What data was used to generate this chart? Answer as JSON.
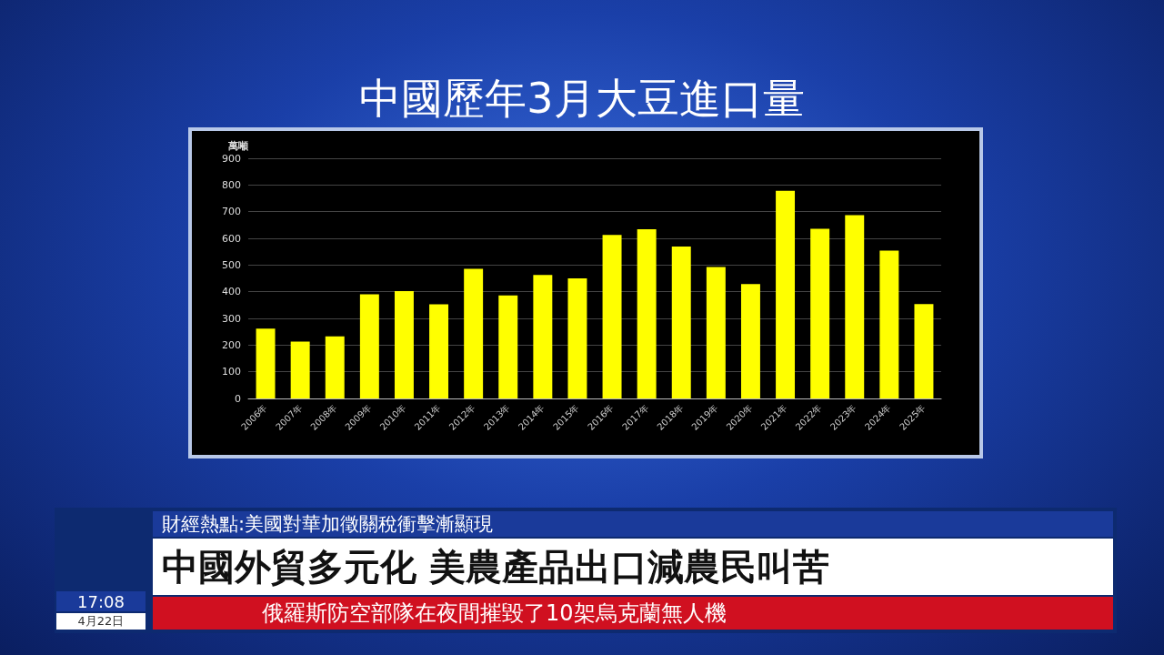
{
  "chart_data": {
    "type": "bar",
    "title": "中國歷年3月大豆進口量",
    "ylabel": "萬噸",
    "categories": [
      "2006年",
      "2007年",
      "2008年",
      "2009年",
      "2010年",
      "2011年",
      "2012年",
      "2013年",
      "2014年",
      "2015年",
      "2016年",
      "2017年",
      "2018年",
      "2019年",
      "2020年",
      "2021年",
      "2022年",
      "2023年",
      "2024年",
      "2025年"
    ],
    "values": [
      262,
      213,
      233,
      390,
      402,
      353,
      486,
      386,
      463,
      450,
      613,
      634,
      569,
      493,
      429,
      778,
      636,
      687,
      554,
      354
    ],
    "color": "#ffff00",
    "ylim": [
      0,
      900
    ],
    "yticks": [
      0,
      100,
      200,
      300,
      400,
      500,
      600,
      700,
      800,
      900
    ],
    "grid": "y",
    "annotations": [
      "財經熱點:美國對華加徵關稅衝擊漸顯現",
      "中國外貿多元化 美農產品出口減農民叫苦",
      "俄羅斯防空部隊在夜間摧毀了10架烏克蘭無人機",
      "17:08",
      "4月22日"
    ]
  }
}
